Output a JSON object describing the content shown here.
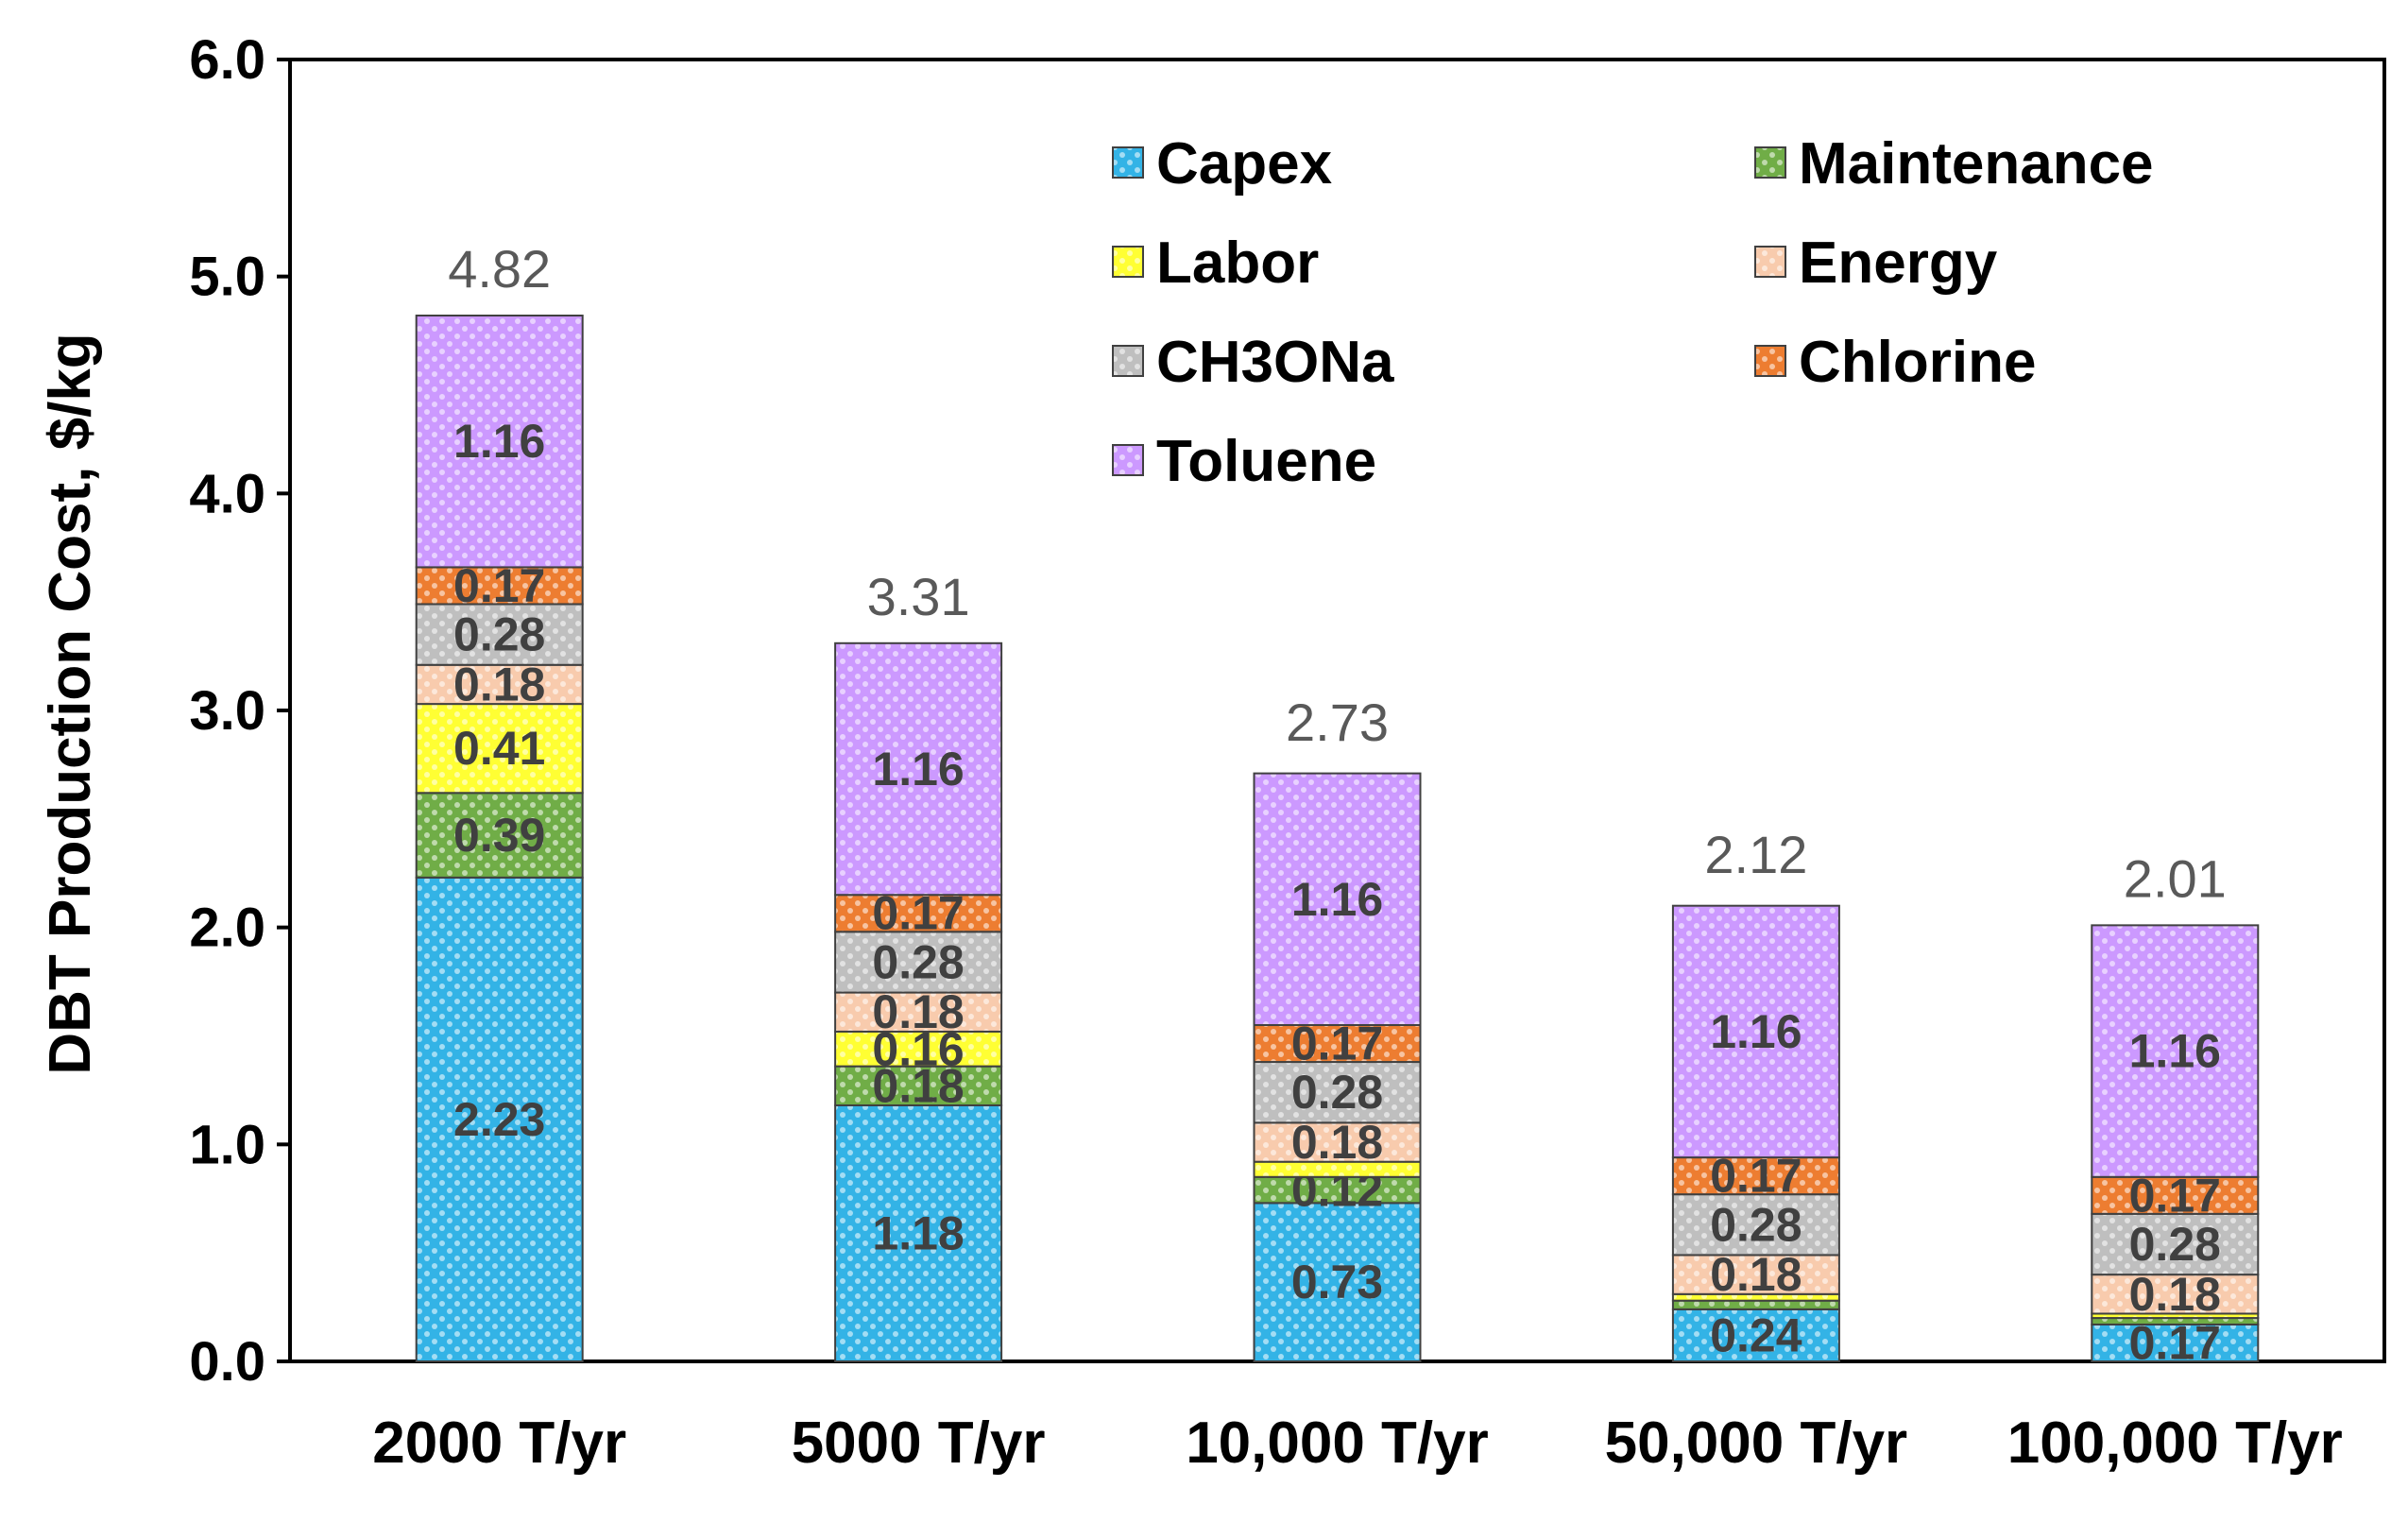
{
  "chart_data": {
    "type": "bar",
    "stacked": true,
    "ylabel": "DBT Production Cost, $/kg",
    "xlabel": "",
    "ylim": [
      0,
      6
    ],
    "yticks": [
      "0.0",
      "1.0",
      "2.0",
      "3.0",
      "4.0",
      "5.0",
      "6.0"
    ],
    "legend_position": "top-right",
    "categories": [
      "2000 T/yr",
      "5000 T/yr",
      "10,000 T/yr",
      "50,000 T/yr",
      "100,000 T/yr"
    ],
    "totals": [
      4.82,
      3.31,
      2.73,
      2.12,
      2.01
    ],
    "total_labels": [
      "4.82",
      "3.31",
      "2.73",
      "2.12",
      "2.01"
    ],
    "series": [
      {
        "name": "Capex",
        "color": "#33b3e6",
        "values": [
          2.23,
          1.18,
          0.73,
          0.24,
          0.17
        ],
        "labels": [
          "2.23",
          "1.18",
          "0.73",
          "0.24",
          "0.17"
        ]
      },
      {
        "name": "Maintenance",
        "color": "#70ad47",
        "values": [
          0.39,
          0.18,
          0.12,
          0.04,
          0.03
        ],
        "labels": [
          "0.39",
          "0.18",
          "0.12",
          "",
          ""
        ]
      },
      {
        "name": "Labor",
        "color": "#ffff33",
        "values": [
          0.41,
          0.16,
          0.07,
          0.03,
          0.02
        ],
        "labels": [
          "0.41",
          "0.16",
          "",
          "",
          ""
        ]
      },
      {
        "name": "Energy",
        "color": "#f8cbad",
        "values": [
          0.18,
          0.18,
          0.18,
          0.18,
          0.18
        ],
        "labels": [
          "0.18",
          "0.18",
          "0.18",
          "0.18",
          "0.18"
        ]
      },
      {
        "name": "CH3ONa",
        "color": "#bfbfbf",
        "values": [
          0.28,
          0.28,
          0.28,
          0.28,
          0.28
        ],
        "labels": [
          "0.28",
          "0.28",
          "0.28",
          "0.28",
          "0.28"
        ]
      },
      {
        "name": "Chlorine",
        "color": "#ed7d31",
        "values": [
          0.17,
          0.17,
          0.17,
          0.17,
          0.17
        ],
        "labels": [
          "0.17",
          "0.17",
          "0.17",
          "0.17",
          "0.17"
        ]
      },
      {
        "name": "Toluene",
        "color": "#cc99ff",
        "values": [
          1.16,
          1.16,
          1.16,
          1.16,
          1.16
        ],
        "labels": [
          "1.16",
          "1.16",
          "1.16",
          "1.16",
          "1.16"
        ]
      }
    ]
  }
}
